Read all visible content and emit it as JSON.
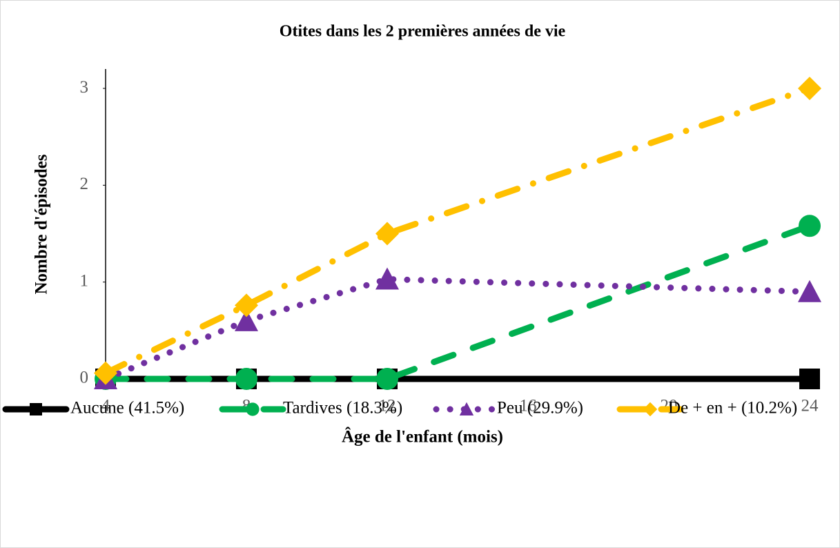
{
  "chart_data": {
    "type": "line",
    "title": "Otites dans les 2 premières années de vie",
    "x_label": "Âge de l'enfant (mois)",
    "y_label": "Nombre d'épisodes",
    "x": [
      4,
      8,
      12,
      24
    ],
    "xlim": [
      4,
      24
    ],
    "xticks": [
      4,
      8,
      12,
      16,
      20,
      24
    ],
    "ylim": [
      0,
      3.2
    ],
    "yticks": [
      0,
      1,
      2,
      3
    ],
    "grid": false,
    "legend": "bottom",
    "series": [
      {
        "name": "Aucune (41.5%)",
        "color": "#000000",
        "marker": "square",
        "dash": "solid",
        "values": [
          0,
          0,
          0,
          0
        ]
      },
      {
        "name": "Tardives (18.3%)",
        "color": "#00b050",
        "marker": "circle",
        "dash": "dash",
        "values": [
          0,
          0,
          0,
          1.58
        ]
      },
      {
        "name": "Peu (29.9%)",
        "color": "#7030a0",
        "marker": "triangle",
        "dash": "dot",
        "values": [
          0,
          0.6,
          1.03,
          0.9
        ]
      },
      {
        "name": "De + en + (10.2%)",
        "color": "#ffc000",
        "marker": "diamond",
        "dash": "dashdot",
        "values": [
          0.06,
          0.76,
          1.5,
          3.0
        ]
      }
    ]
  }
}
